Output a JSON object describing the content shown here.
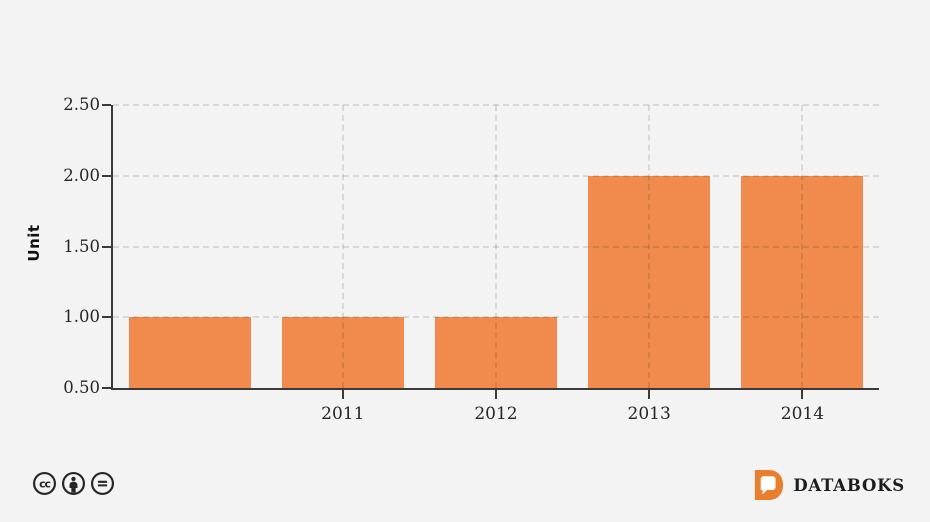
{
  "chart_data": {
    "type": "bar",
    "categories": [
      "",
      "2011",
      "2012",
      "2013",
      "2014"
    ],
    "values": [
      1.0,
      1.0,
      1.0,
      2.0,
      2.0
    ],
    "title": "",
    "xlabel": "",
    "ylabel": "Unit",
    "ylim": [
      0.5,
      2.5
    ],
    "ytick_values": [
      2.5,
      2.0,
      1.5,
      1.0,
      0.5
    ],
    "ytick_labels": [
      "2.50",
      "2.00",
      "1.50",
      "1.00",
      "0.50"
    ],
    "bar_color": "#F08B4D",
    "grid": true,
    "grid_style": "dashed",
    "legend": false,
    "background": "#F3F3F3",
    "axis_color": "#3a3a3a"
  },
  "footer": {
    "license_icons": [
      "cc-icon",
      "attribution-icon",
      "no-derivatives-icon"
    ],
    "brand": "DATABOKS",
    "brand_color": "#E87E2E",
    "icon_color": "#262626"
  }
}
